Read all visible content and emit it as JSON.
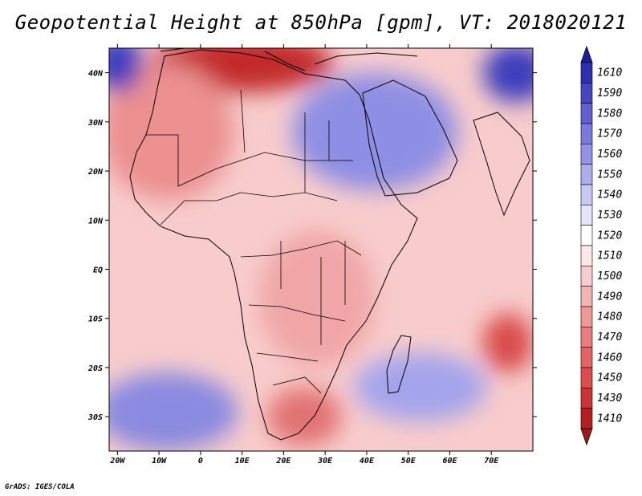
{
  "title": "Geopotential Height at 850hPa [gpm], VT: 2018020121",
  "credit": "GrADS: IGES/COLA",
  "map": {
    "lon_range": [
      -22,
      80
    ],
    "lat_range": [
      -37,
      45
    ],
    "lon_ticks": [
      {
        "value": -20,
        "label": "20W"
      },
      {
        "value": -10,
        "label": "10W"
      },
      {
        "value": 0,
        "label": "0"
      },
      {
        "value": 10,
        "label": "10E"
      },
      {
        "value": 20,
        "label": "20E"
      },
      {
        "value": 30,
        "label": "30E"
      },
      {
        "value": 40,
        "label": "40E"
      },
      {
        "value": 50,
        "label": "50E"
      },
      {
        "value": 60,
        "label": "60E"
      },
      {
        "value": 70,
        "label": "70E"
      }
    ],
    "lat_ticks": [
      {
        "value": 40,
        "label": "40N"
      },
      {
        "value": 30,
        "label": "30N"
      },
      {
        "value": 20,
        "label": "20N"
      },
      {
        "value": 10,
        "label": "10N"
      },
      {
        "value": 0,
        "label": "EQ"
      },
      {
        "value": -10,
        "label": "10S"
      },
      {
        "value": -20,
        "label": "20S"
      },
      {
        "value": -30,
        "label": "30S"
      }
    ]
  },
  "colorbar": {
    "levels": [
      {
        "value": "1410",
        "color": "#b41e1e"
      },
      {
        "value": "1430",
        "color": "#cc3434"
      },
      {
        "value": "1450",
        "color": "#dc4c4c"
      },
      {
        "value": "1460",
        "color": "#e46464"
      },
      {
        "value": "1470",
        "color": "#e87e7e"
      },
      {
        "value": "1480",
        "color": "#ee9898"
      },
      {
        "value": "1490",
        "color": "#f4b4b4"
      },
      {
        "value": "1500",
        "color": "#f8cccc"
      },
      {
        "value": "1510",
        "color": "#fde8e8"
      },
      {
        "value": "1520",
        "color": "#ffffff"
      },
      {
        "value": "1530",
        "color": "#e4e4fa"
      },
      {
        "value": "1540",
        "color": "#c8c8f4"
      },
      {
        "value": "1550",
        "color": "#aeaeee"
      },
      {
        "value": "1560",
        "color": "#9494e6"
      },
      {
        "value": "1570",
        "color": "#7a7adc"
      },
      {
        "value": "1580",
        "color": "#6060d0"
      },
      {
        "value": "1590",
        "color": "#4646c2"
      },
      {
        "value": "1610",
        "color": "#2e2eb0"
      }
    ],
    "max_arrow_color": "#1e1e9c",
    "min_arrow_color": "#a01818"
  },
  "field_blobs": [
    {
      "name": "low-mediterranean",
      "lon": 10,
      "lat": 42,
      "rx": 22,
      "ry": 6,
      "color": "#c22a2a"
    },
    {
      "name": "low-north-africa",
      "lon": -8,
      "lat": 28,
      "rx": 16,
      "ry": 14,
      "color": "#ec9090"
    },
    {
      "name": "high-arabia",
      "lon": 42,
      "lat": 28,
      "rx": 20,
      "ry": 12,
      "color": "#8e8ee4"
    },
    {
      "name": "high-north-east",
      "lon": 76,
      "lat": 40,
      "rx": 8,
      "ry": 6,
      "color": "#3c3cbc"
    },
    {
      "name": "high-north-west",
      "lon": -20,
      "lat": 42,
      "rx": 6,
      "ry": 6,
      "color": "#3c3cbc"
    },
    {
      "name": "high-south-atlantic",
      "lon": -8,
      "lat": -29,
      "rx": 17,
      "ry": 8,
      "color": "#8a8ae0"
    },
    {
      "name": "high-south-indian",
      "lon": 53,
      "lat": -24,
      "rx": 16,
      "ry": 7,
      "color": "#a4a4ec"
    },
    {
      "name": "low-indian-cyclone",
      "lon": 74,
      "lat": -15,
      "rx": 6,
      "ry": 6,
      "color": "#d84848"
    },
    {
      "name": "low-central-africa",
      "lon": 28,
      "lat": -6,
      "rx": 14,
      "ry": 14,
      "color": "#f0a6a6"
    },
    {
      "name": "low-southern-africa",
      "lon": 25,
      "lat": -30,
      "rx": 9,
      "ry": 6,
      "color": "#e27272"
    }
  ]
}
